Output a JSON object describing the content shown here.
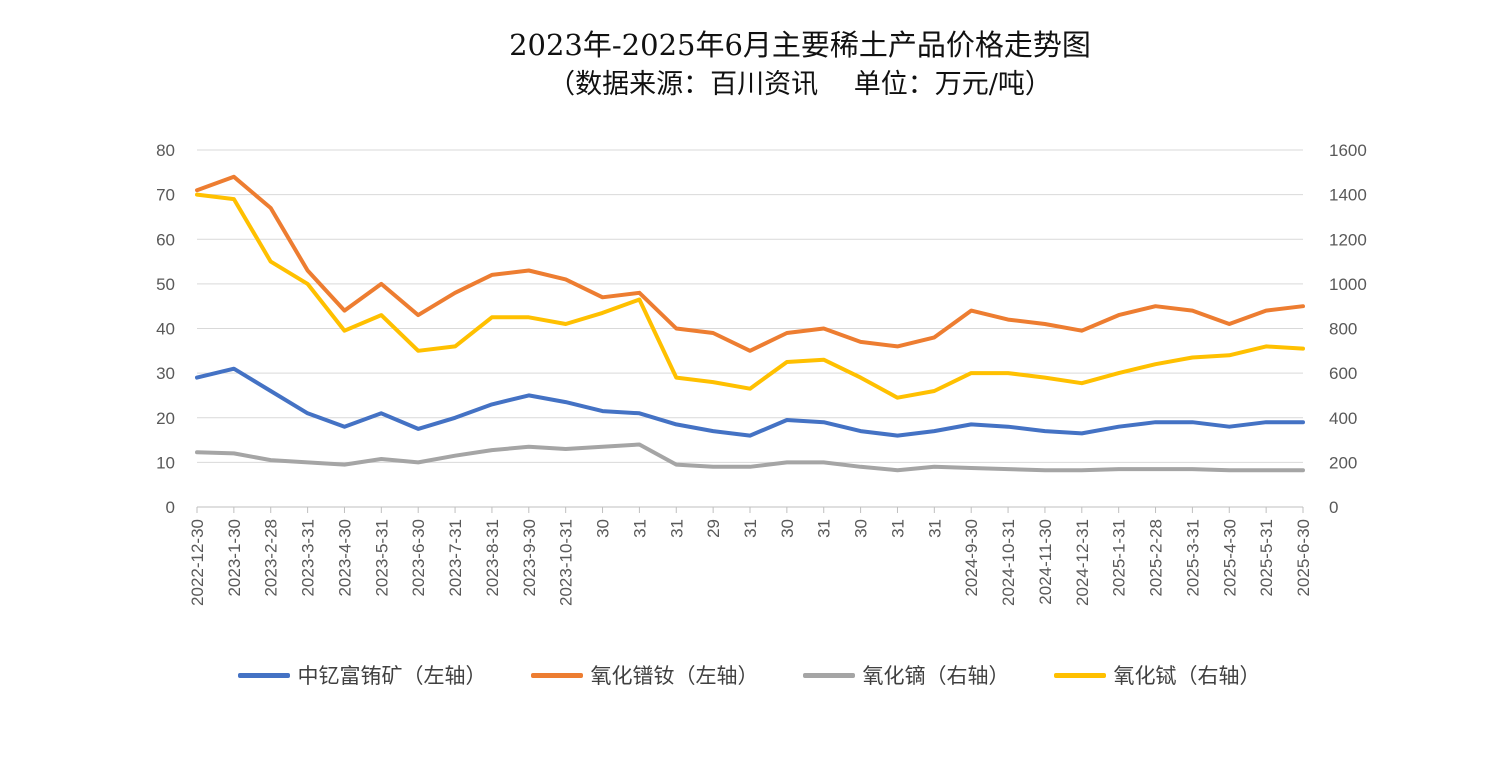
{
  "chart_data": {
    "type": "line",
    "title": "2023年-2025年6月主要稀土产品价格走势图",
    "subtitle": "（数据来源：百川资讯　 单位：万元/吨）",
    "x": [
      "2022-12-30",
      "2023-1-30",
      "2023-2-28",
      "2023-3-31",
      "2023-4-30",
      "2023-5-31",
      "2023-6-30",
      "2023-7-31",
      "2023-8-31",
      "2023-9-30",
      "2023-10-31",
      "2023-11-30",
      "2023-12-31",
      "2024-1-31",
      "2024-2-29",
      "2024-3-31",
      "2024-4-30",
      "2024-5-31",
      "2024-6-30",
      "2024-7-31",
      "2024-8-31",
      "2024-9-30",
      "2024-10-31",
      "2024-11-30",
      "2024-12-31",
      "2025-1-31",
      "2025-2-28",
      "2025-3-31",
      "2025-4-30",
      "2025-5-31",
      "2025-6-30"
    ],
    "x_tick_labels": [
      "2022-12-30",
      "2023-1-30",
      "2023-2-28",
      "2023-3-31",
      "2023-4-30",
      "2023-5-31",
      "2023-6-30",
      "2023-7-31",
      "2023-8-31",
      "2023-9-30",
      "2023-10-31",
      "30",
      "31",
      "31",
      "29",
      "31",
      "30",
      "31",
      "30",
      "31",
      "31",
      "2024-9-30",
      "2024-10-31",
      "2024-11-30",
      "2024-12-31",
      "2025-1-31",
      "2025-2-28",
      "2025-3-31",
      "2025-4-30",
      "2025-5-31",
      "2025-6-30"
    ],
    "y_left": {
      "min": 0,
      "max": 80,
      "ticks": [
        0,
        10,
        20,
        30,
        40,
        50,
        60,
        70,
        80
      ]
    },
    "y_right": {
      "min": 0,
      "max": 1600,
      "ticks": [
        0,
        200,
        400,
        600,
        800,
        1000,
        1200,
        1400,
        1600
      ]
    },
    "grid": true,
    "legend_position": "bottom",
    "series": [
      {
        "name": "中钇富铕矿（左轴）",
        "axis": "left",
        "color": "#4472C4",
        "values": [
          29,
          31,
          26,
          21,
          18,
          21,
          17.5,
          20,
          23,
          25,
          23.5,
          21.5,
          21,
          18.5,
          17,
          16,
          19.5,
          19,
          17,
          16,
          17,
          18.5,
          18,
          17,
          16.5,
          18,
          19,
          19,
          18,
          19,
          19
        ]
      },
      {
        "name": "氧化镨钕（左轴）",
        "axis": "left",
        "color": "#ED7D31",
        "values": [
          71,
          74,
          67,
          53,
          44,
          50,
          43,
          48,
          52,
          53,
          51,
          47,
          48,
          40,
          39,
          35,
          39,
          40,
          37,
          36,
          38,
          44,
          42,
          41,
          39.5,
          43,
          45,
          44,
          41,
          44,
          45
        ]
      },
      {
        "name": "氧化镝（右轴）",
        "axis": "right",
        "color": "#A5A5A5",
        "values": [
          245,
          240,
          210,
          200,
          190,
          215,
          200,
          230,
          255,
          270,
          260,
          270,
          280,
          190,
          180,
          180,
          200,
          200,
          180,
          165,
          180,
          175,
          170,
          165,
          165,
          170,
          170,
          170,
          165,
          165,
          165
        ]
      },
      {
        "name": "氧化铽（右轴）",
        "axis": "right",
        "color": "#FFC000",
        "values": [
          1400,
          1380,
          1100,
          1000,
          790,
          860,
          700,
          720,
          850,
          850,
          820,
          870,
          930,
          580,
          560,
          530,
          650,
          660,
          580,
          490,
          520,
          600,
          600,
          580,
          555,
          600,
          640,
          670,
          680,
          720,
          710
        ]
      }
    ]
  }
}
